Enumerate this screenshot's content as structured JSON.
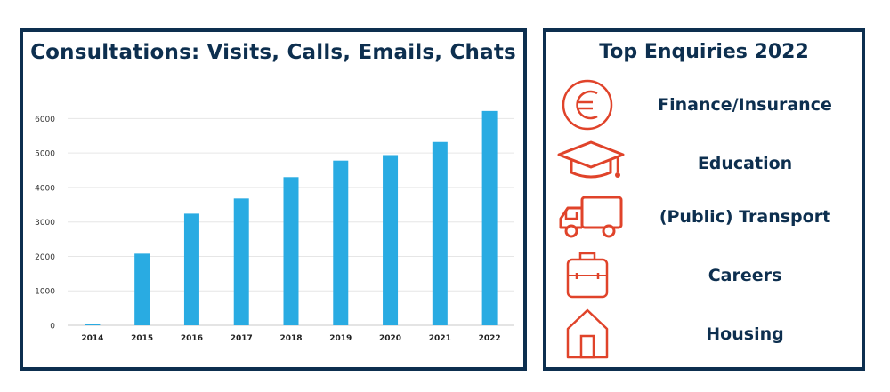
{
  "chart_data": {
    "type": "bar",
    "title": "Consultations: Visits, Calls, Emails, Chats",
    "categories": [
      "2014",
      "2015",
      "2016",
      "2017",
      "2018",
      "2019",
      "2020",
      "2021",
      "2022"
    ],
    "values": [
      40,
      2080,
      3240,
      3680,
      4300,
      4780,
      4940,
      5320,
      6220
    ],
    "ylim": [
      0,
      6500
    ],
    "yticks": [
      0,
      1000,
      2000,
      3000,
      4000,
      5000,
      6000
    ],
    "grid": true,
    "bar_color": "#29abe2"
  },
  "enquiries": {
    "title": "Top Enquiries 2022",
    "accent": "#e0432a",
    "items": [
      {
        "icon": "euro-icon",
        "label": "Finance/Insurance"
      },
      {
        "icon": "graduation-cap-icon",
        "label": "Education"
      },
      {
        "icon": "truck-icon",
        "label": "(Public) Transport"
      },
      {
        "icon": "briefcase-icon",
        "label": "Careers"
      },
      {
        "icon": "house-icon",
        "label": "Housing"
      }
    ]
  }
}
